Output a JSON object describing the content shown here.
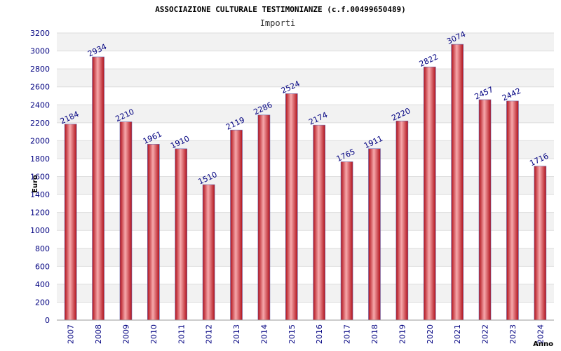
{
  "chart_data": {
    "type": "bar",
    "title": "ASSOCIAZIONE CULTURALE TESTIMONIANZE (c.f.00499650489)",
    "subtitle": "Importi",
    "xlabel": "Anno",
    "ylabel": "Euro",
    "categories": [
      "2007",
      "2008",
      "2009",
      "2010",
      "2011",
      "2012",
      "2013",
      "2014",
      "2015",
      "2016",
      "2017",
      "2018",
      "2019",
      "2020",
      "2021",
      "2022",
      "2023",
      "2024"
    ],
    "values": [
      2184,
      2934,
      2210,
      1961,
      1910,
      1510,
      2119,
      2286,
      2524,
      2174,
      1765,
      1911,
      2220,
      2822,
      3074,
      2457,
      2442,
      1716
    ],
    "ylim": [
      0,
      3200
    ],
    "yticks": [
      0,
      200,
      400,
      600,
      800,
      1000,
      1200,
      1400,
      1600,
      1800,
      2000,
      2200,
      2400,
      2600,
      2800,
      3000,
      3200
    ],
    "grid": true,
    "legend": "none",
    "colors": {
      "bar": "#e8323a",
      "bar_highlight": "#f7a8ab",
      "bar_edge": "#6a6ab0",
      "band": "#f2f2f2",
      "grid": "#dddddd",
      "tick_text": "#000080"
    }
  }
}
